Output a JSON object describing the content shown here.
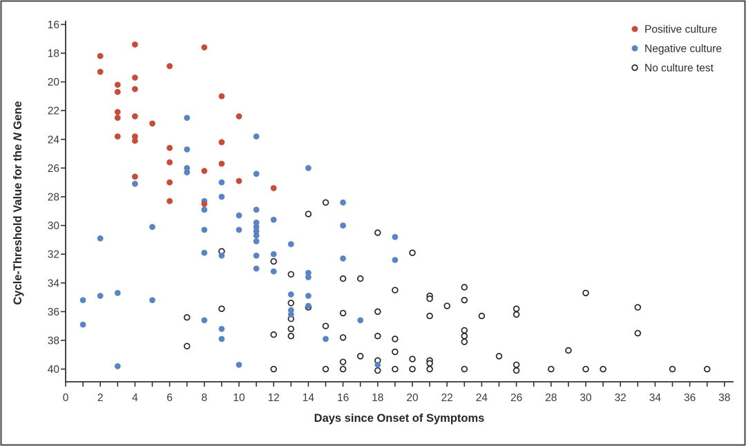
{
  "chart_data": {
    "type": "scatter",
    "title": "",
    "xlabel": "Days since Onset of Symptoms",
    "ylabel_parts": {
      "prefix": "Cycle-Threshold Value for the ",
      "italic": "N",
      "suffix": " Gene"
    },
    "xlim": [
      0,
      38
    ],
    "ylim": [
      16,
      40
    ],
    "y_inverted": true,
    "x_tick_labels": [
      0,
      2,
      4,
      6,
      8,
      10,
      12,
      14,
      16,
      18,
      20,
      22,
      24,
      26,
      28,
      30,
      32,
      34,
      36,
      38
    ],
    "x_minor_step": 1,
    "y_tick_labels": [
      16,
      18,
      20,
      22,
      24,
      26,
      28,
      30,
      32,
      34,
      36,
      38,
      40
    ],
    "grid": false,
    "legend_position": "top-right",
    "colors": {
      "positive": "#c54d39",
      "negative": "#5b84c4",
      "none": "#262626",
      "axis": "#303030",
      "tick_text": "#3a3a3a",
      "border": "#454545"
    },
    "legend": [
      {
        "label": "Positive culture",
        "marker": "filled",
        "color": "#c54d39"
      },
      {
        "label": "Negative culture",
        "marker": "filled",
        "color": "#5b84c4"
      },
      {
        "label": "No culture test",
        "marker": "open",
        "color": "#262626"
      }
    ],
    "series": [
      {
        "name": "Positive culture",
        "marker": "filled",
        "color": "#c54d39",
        "points": [
          [
            2,
            18.2
          ],
          [
            2,
            19.3
          ],
          [
            3,
            20.2
          ],
          [
            3,
            20.7
          ],
          [
            3,
            22.1
          ],
          [
            3,
            22.5
          ],
          [
            3,
            23.8
          ],
          [
            4,
            17.4
          ],
          [
            4,
            19.7
          ],
          [
            4,
            20.5
          ],
          [
            4,
            22.4
          ],
          [
            4,
            23.8
          ],
          [
            4,
            24.1
          ],
          [
            4,
            26.6
          ],
          [
            5,
            22.9
          ],
          [
            6,
            18.9
          ],
          [
            6,
            24.6
          ],
          [
            6,
            25.6
          ],
          [
            6,
            27.0
          ],
          [
            6,
            28.3
          ],
          [
            8,
            17.6
          ],
          [
            8,
            26.2
          ],
          [
            8,
            28.5
          ],
          [
            9,
            21.0
          ],
          [
            9,
            24.2
          ],
          [
            9,
            25.7
          ],
          [
            10,
            22.4
          ],
          [
            10,
            26.9
          ],
          [
            12,
            27.4
          ]
        ]
      },
      {
        "name": "Negative culture",
        "marker": "filled",
        "color": "#5b84c4",
        "points": [
          [
            1,
            35.2
          ],
          [
            1,
            36.9
          ],
          [
            2,
            30.9
          ],
          [
            2,
            34.9
          ],
          [
            3,
            34.7
          ],
          [
            3,
            39.8
          ],
          [
            4,
            27.1
          ],
          [
            5,
            30.1
          ],
          [
            5,
            35.2
          ],
          [
            7,
            22.5
          ],
          [
            7,
            24.7
          ],
          [
            7,
            26.0
          ],
          [
            7,
            26.3
          ],
          [
            8,
            28.3
          ],
          [
            8,
            28.9
          ],
          [
            8,
            30.3
          ],
          [
            8,
            31.9
          ],
          [
            8,
            36.6
          ],
          [
            9,
            27.0
          ],
          [
            9,
            28.0
          ],
          [
            9,
            32.1
          ],
          [
            9,
            37.2
          ],
          [
            9,
            37.9
          ],
          [
            10,
            29.3
          ],
          [
            10,
            30.3
          ],
          [
            10,
            39.7
          ],
          [
            11,
            23.8
          ],
          [
            11,
            26.4
          ],
          [
            11,
            28.9
          ],
          [
            11,
            29.8
          ],
          [
            11,
            30.1
          ],
          [
            11,
            30.4
          ],
          [
            11,
            30.7
          ],
          [
            11,
            31.1
          ],
          [
            11,
            32.1
          ],
          [
            11,
            33.0
          ],
          [
            12,
            29.6
          ],
          [
            12,
            32.0
          ],
          [
            12,
            33.2
          ],
          [
            13,
            31.3
          ],
          [
            13,
            34.8
          ],
          [
            13,
            35.9
          ],
          [
            13,
            36.2
          ],
          [
            14,
            26.0
          ],
          [
            14,
            33.3
          ],
          [
            14,
            33.6
          ],
          [
            14,
            34.9
          ],
          [
            14,
            35.6
          ],
          [
            15,
            37.9
          ],
          [
            16,
            28.4
          ],
          [
            16,
            30.0
          ],
          [
            16,
            32.3
          ],
          [
            17,
            36.6
          ],
          [
            18,
            39.7
          ],
          [
            19,
            30.8
          ],
          [
            19,
            32.4
          ]
        ]
      },
      {
        "name": "No culture test",
        "marker": "open",
        "color": "#262626",
        "points": [
          [
            7,
            36.4
          ],
          [
            7,
            38.4
          ],
          [
            9,
            31.8
          ],
          [
            9,
            35.8
          ],
          [
            12,
            32.5
          ],
          [
            12,
            37.6
          ],
          [
            12,
            40.0
          ],
          [
            13,
            33.4
          ],
          [
            13,
            35.4
          ],
          [
            13,
            36.5
          ],
          [
            13,
            37.2
          ],
          [
            13,
            37.7
          ],
          [
            14,
            29.2
          ],
          [
            14,
            35.7
          ],
          [
            15,
            28.4
          ],
          [
            15,
            37.0
          ],
          [
            15,
            40.0
          ],
          [
            16,
            33.7
          ],
          [
            16,
            36.1
          ],
          [
            16,
            37.8
          ],
          [
            16,
            39.5
          ],
          [
            16,
            40.0
          ],
          [
            17,
            33.7
          ],
          [
            17,
            39.1
          ],
          [
            18,
            30.5
          ],
          [
            18,
            36.0
          ],
          [
            18,
            37.7
          ],
          [
            18,
            39.4
          ],
          [
            18,
            40.1
          ],
          [
            19,
            34.5
          ],
          [
            19,
            37.9
          ],
          [
            19,
            38.8
          ],
          [
            19,
            40.0
          ],
          [
            20,
            31.9
          ],
          [
            20,
            39.3
          ],
          [
            20,
            40.0
          ],
          [
            21,
            34.9
          ],
          [
            21,
            35.1
          ],
          [
            21,
            36.3
          ],
          [
            21,
            39.4
          ],
          [
            21,
            39.6
          ],
          [
            21,
            40.0
          ],
          [
            22,
            35.6
          ],
          [
            23,
            34.3
          ],
          [
            23,
            35.2
          ],
          [
            23,
            37.3
          ],
          [
            23,
            37.7
          ],
          [
            23,
            38.1
          ],
          [
            23,
            40.0
          ],
          [
            24,
            36.3
          ],
          [
            25,
            39.1
          ],
          [
            26,
            35.8
          ],
          [
            26,
            36.2
          ],
          [
            26,
            39.7
          ],
          [
            26,
            40.1
          ],
          [
            28,
            40.0
          ],
          [
            29,
            38.7
          ],
          [
            30,
            34.7
          ],
          [
            30,
            40.0
          ],
          [
            31,
            40.0
          ],
          [
            33,
            35.7
          ],
          [
            33,
            37.5
          ],
          [
            35,
            40.0
          ],
          [
            37,
            40.0
          ]
        ]
      }
    ]
  }
}
